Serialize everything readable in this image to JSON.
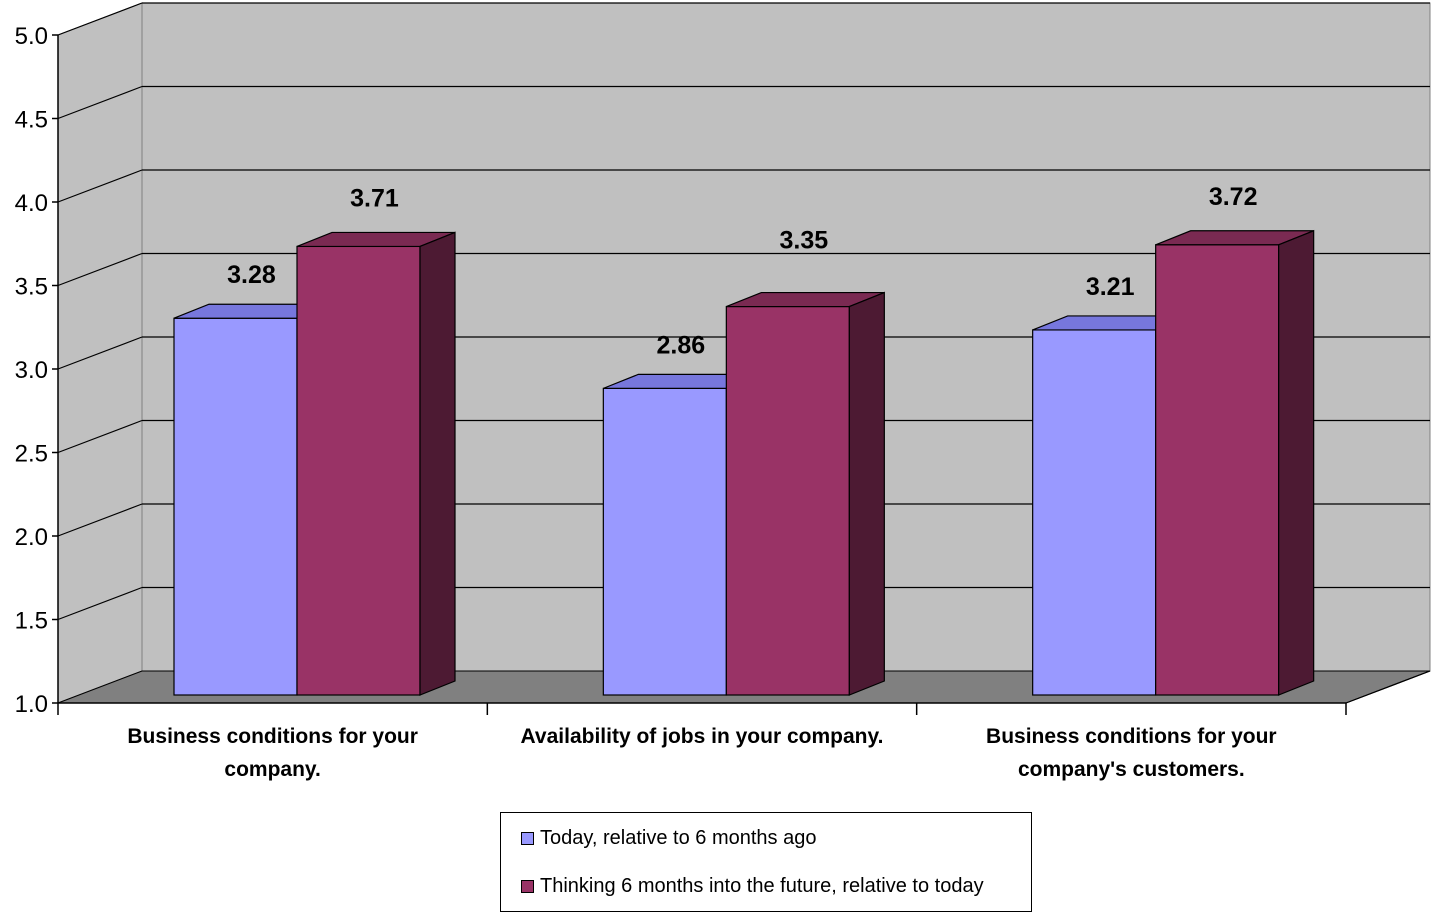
{
  "chart_data": {
    "type": "bar",
    "categories": [
      [
        "Business conditions for your",
        "company."
      ],
      [
        "Availability of jobs in your company."
      ],
      [
        "Business conditions for your",
        "company's customers."
      ]
    ],
    "series": [
      {
        "name": "Today, relative to 6 months ago",
        "values": [
          3.28,
          2.86,
          3.21
        ],
        "labels": [
          "3.28",
          "2.86",
          "3.21"
        ],
        "color": "#9999ff",
        "side_color": "#6a6ad0"
      },
      {
        "name": "Thinking 6 months into the future, relative to today",
        "values": [
          3.71,
          3.35,
          3.72
        ],
        "labels": [
          "3.71",
          "3.35",
          "3.72"
        ],
        "color": "#993366",
        "side_color": "#4d1a33"
      }
    ],
    "ylim": [
      1.0,
      5.0
    ],
    "yticks": [
      "1.0",
      "1.5",
      "2.0",
      "2.5",
      "3.0",
      "3.5",
      "4.0",
      "4.5",
      "5.0"
    ],
    "grid": true,
    "legend_position": "bottom",
    "wall_color": "#c0c0c0",
    "floor_color": "#808080"
  }
}
